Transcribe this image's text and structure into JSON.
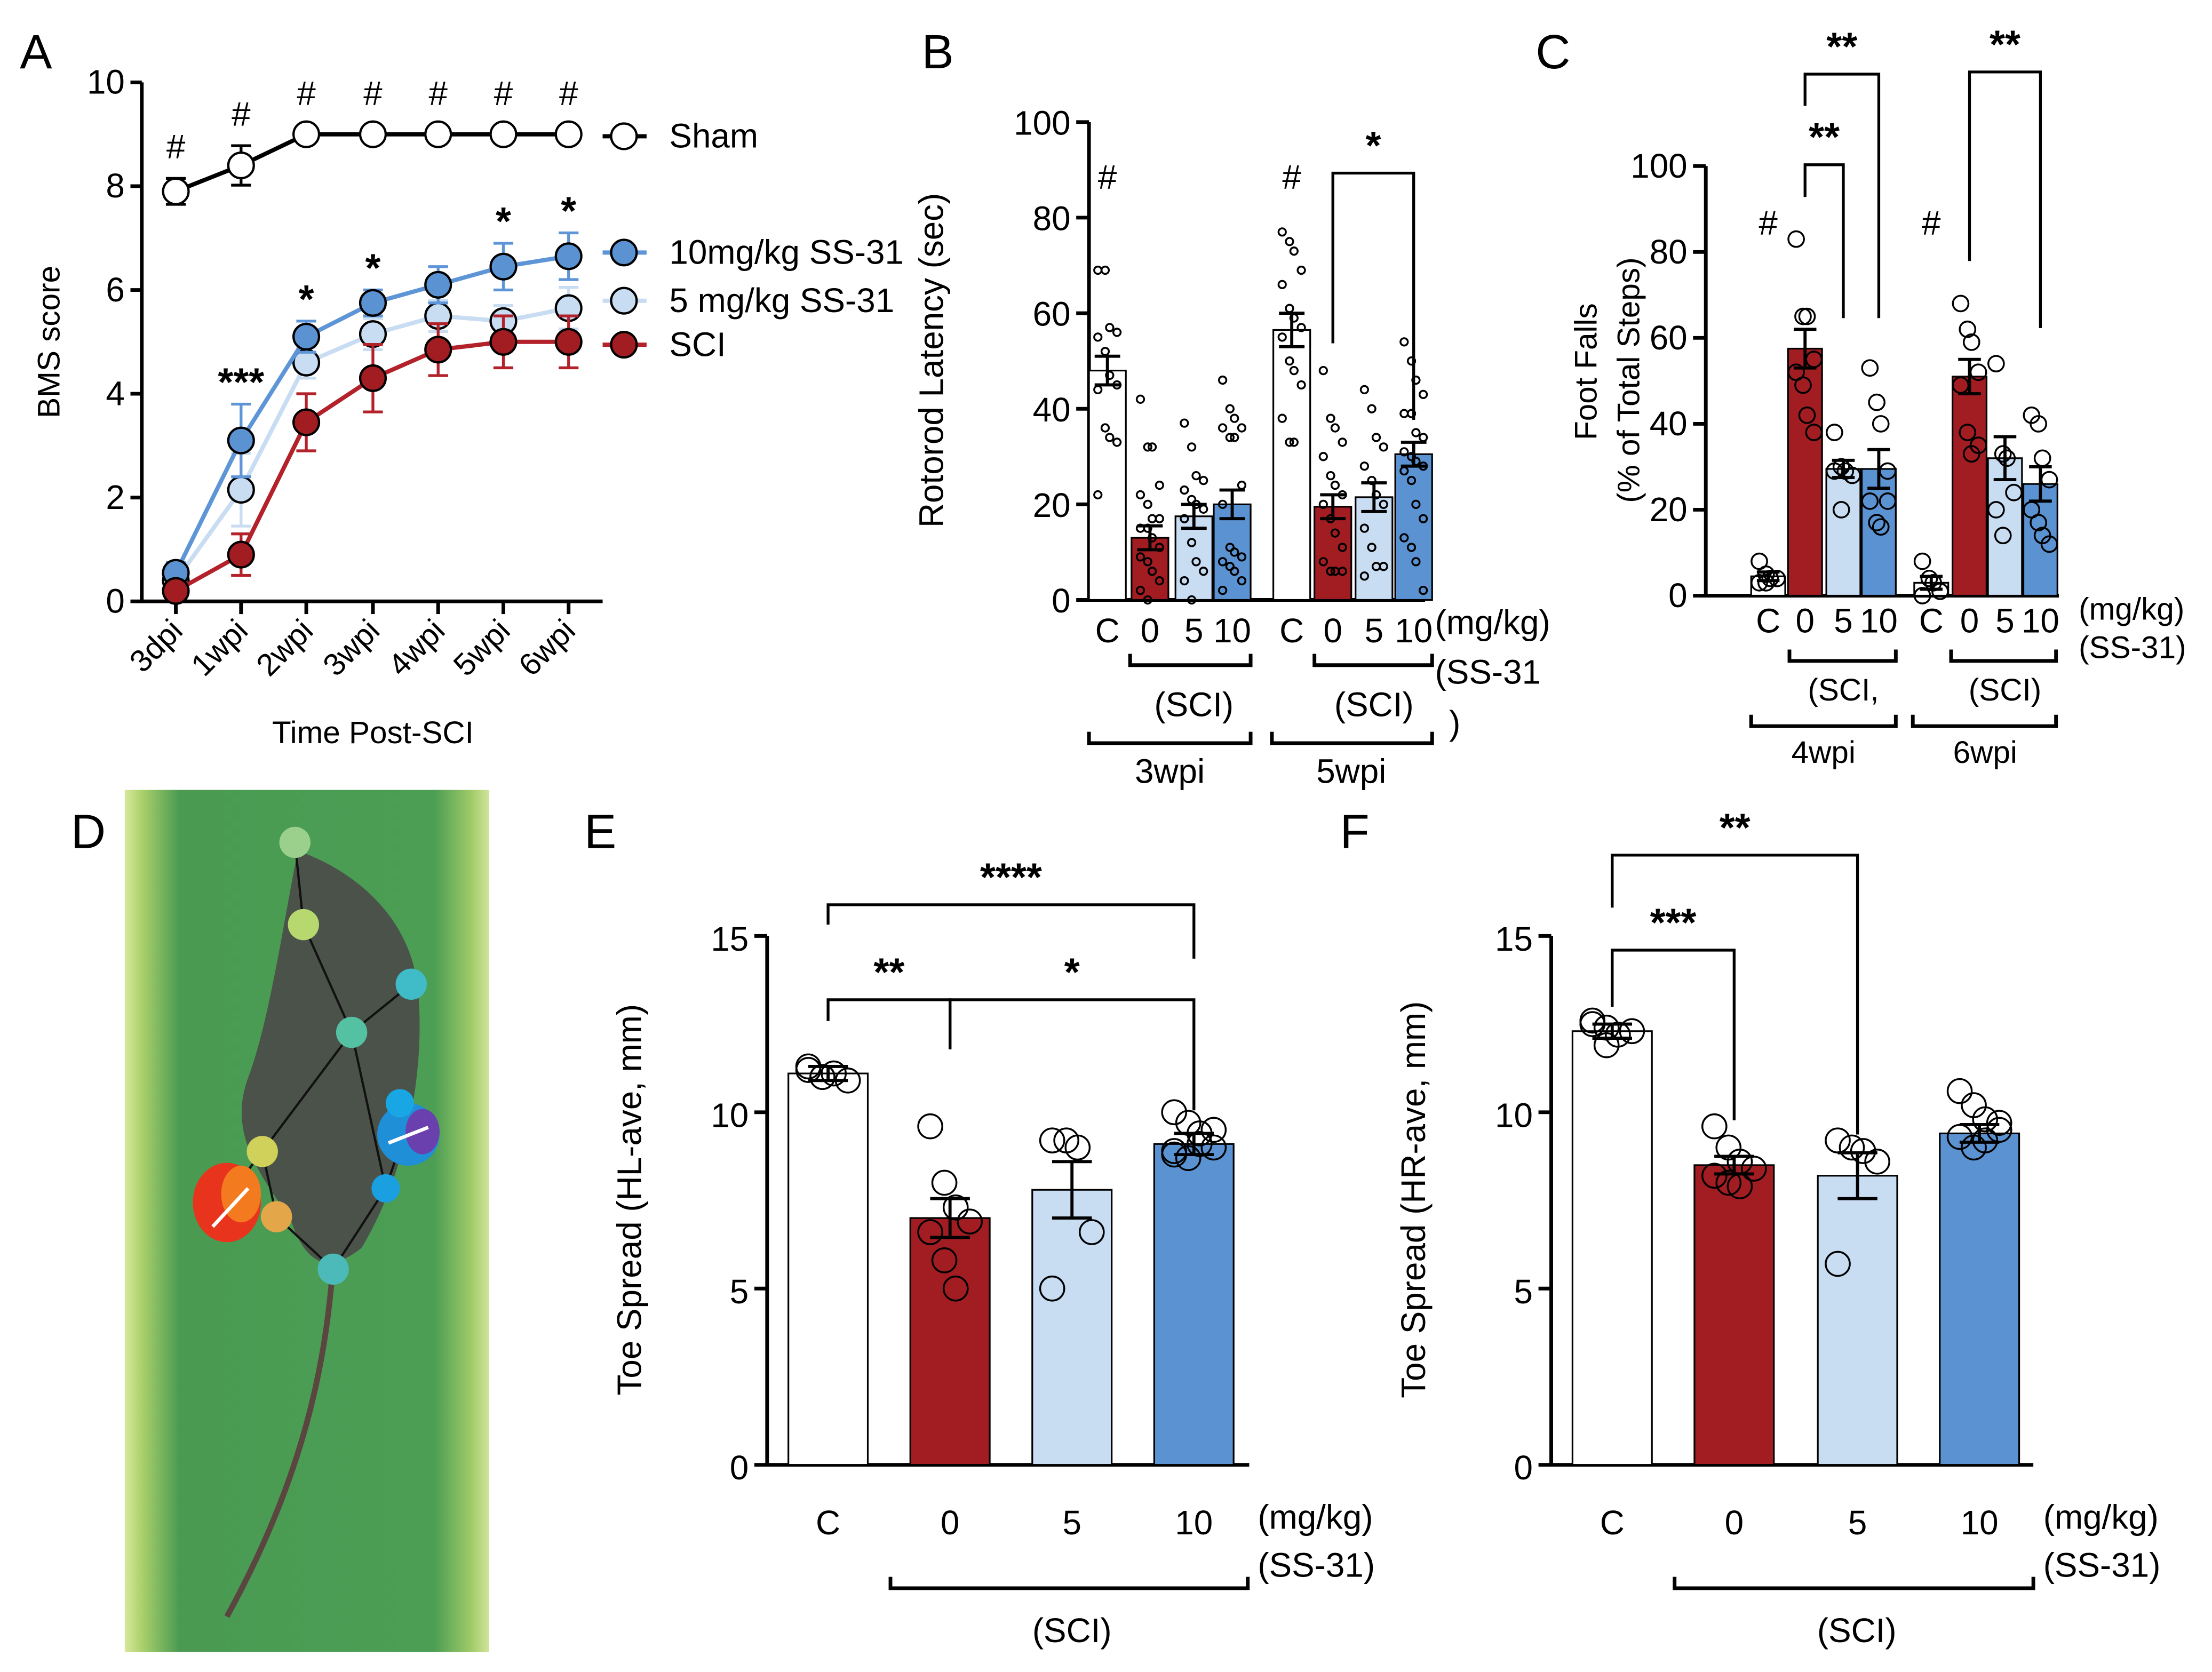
{
  "panels": {
    "A": "A",
    "B": "B",
    "C": "C",
    "D": "D",
    "E": "E",
    "F": "F"
  },
  "colors": {
    "sham": "#ffffff",
    "sci": "#a11d22",
    "ss5": "#c8dcf2",
    "ss10": "#5b93d2",
    "sci_line": "#b3212a",
    "ss5_line": "#c8dcf2",
    "ss10_line": "#5e95d6"
  },
  "chart_data": [
    {
      "id": "A",
      "type": "line",
      "xlabel": "Time Post-SCI",
      "ylabel": "BMS score",
      "ylim": [
        0,
        10
      ],
      "yticks": [
        "0",
        "2",
        "4",
        "6",
        "8",
        "10"
      ],
      "x": [
        "3dpi",
        "1wpi",
        "2wpi",
        "3wpi",
        "4wpi",
        "5wpi",
        "6wpi"
      ],
      "series": [
        {
          "name": "Sham",
          "values": [
            7.9,
            8.4,
            9,
            9,
            9,
            9,
            9
          ],
          "errors": [
            0.25,
            0.38,
            0,
            0,
            0,
            0,
            0
          ]
        },
        {
          "name": "10mg/kg SS-31",
          "values": [
            0.55,
            3.1,
            5.1,
            5.75,
            6.1,
            6.45,
            6.65
          ],
          "errors": [
            0.2,
            0.7,
            0.3,
            0.25,
            0.35,
            0.45,
            0.45
          ]
        },
        {
          "name": "5 mg/kg SS-31",
          "values": [
            0.4,
            2.15,
            4.6,
            5.15,
            5.5,
            5.4,
            5.65
          ],
          "errors": [
            0.2,
            0.7,
            0.3,
            0.3,
            0.3,
            0.3,
            0.4
          ]
        },
        {
          "name": "SCI",
          "values": [
            0.2,
            0.9,
            3.45,
            4.3,
            4.85,
            5.0,
            5.0
          ],
          "errors": [
            0.1,
            0.4,
            0.55,
            0.65,
            0.5,
            0.5,
            0.5
          ]
        }
      ],
      "hash_marks": [
        "#",
        "#",
        "#",
        "#",
        "#",
        "#",
        "#"
      ],
      "stars": [
        "",
        "***",
        "*",
        "*",
        "",
        "*",
        "*"
      ]
    },
    {
      "id": "B",
      "type": "bar",
      "ylabel": "Rotorod Latency (sec)",
      "ylim": [
        0,
        100
      ],
      "yticks": [
        "0",
        "20",
        "40",
        "60",
        "80",
        "100"
      ],
      "categories": [
        "C",
        "0",
        "5",
        "10",
        "C",
        "0",
        "5",
        "10"
      ],
      "unit_label": "(mg/kg)",
      "drug_label": "(SS-31",
      "drug_label_close": ")",
      "sci_label": "(SCI)",
      "timepoints": [
        "3wpi",
        "5wpi"
      ],
      "values": [
        48,
        13,
        17.5,
        20,
        56.5,
        19.5,
        21.5,
        30.5
      ],
      "errors": [
        3,
        2.5,
        2.5,
        3,
        3.5,
        2.5,
        3,
        2.5
      ],
      "points": [
        [
          69,
          69,
          57,
          56,
          55,
          52,
          47,
          45,
          44,
          36,
          34,
          33,
          22
        ],
        [
          42,
          32,
          32,
          24,
          22,
          20,
          17,
          17,
          15,
          15,
          13,
          11,
          9,
          8,
          6,
          4,
          2,
          0
        ],
        [
          37,
          32,
          26,
          25,
          23,
          21,
          20,
          19,
          17,
          12,
          8,
          6,
          4,
          0
        ],
        [
          46,
          40,
          38,
          36,
          36,
          34,
          34,
          24,
          20,
          11,
          10,
          9,
          8,
          7,
          6,
          4,
          2
        ],
        [
          77,
          75,
          73,
          69,
          66,
          61,
          59,
          57,
          55,
          50,
          48,
          45,
          38,
          33,
          33
        ],
        [
          48,
          38,
          36,
          33,
          30,
          26,
          24,
          22,
          20,
          17,
          14,
          11,
          8,
          6,
          6,
          6
        ],
        [
          44,
          40,
          34,
          32,
          28,
          25,
          22,
          20,
          15,
          11,
          7,
          7,
          5
        ],
        [
          54,
          50,
          46,
          43,
          39,
          39,
          35,
          34,
          31,
          30,
          29,
          28,
          27,
          25,
          20,
          17,
          13,
          11,
          8,
          2
        ]
      ],
      "hash_marks": [
        "#",
        "#"
      ],
      "comparisons": [
        {
          "from": 5,
          "to": 7,
          "label": "*"
        }
      ]
    },
    {
      "id": "C",
      "type": "bar",
      "ylabel": "Foot Falls",
      "ylabel2": "(% of Total Steps)",
      "ylim": [
        0,
        100
      ],
      "yticks": [
        "0",
        "20",
        "40",
        "60",
        "80",
        "100"
      ],
      "categories": [
        "C",
        "0",
        "5",
        "10",
        "C",
        "0",
        "5",
        "10"
      ],
      "unit_label": "(mg/kg)",
      "drug_label": "(SS-31)",
      "sci_labels": [
        "(SCI,",
        "(SCI)"
      ],
      "timepoints": [
        "4wpi",
        "6wpi"
      ],
      "values": [
        4.5,
        57.5,
        29.5,
        29.5,
        3,
        51,
        32,
        26
      ],
      "errors": [
        1,
        4.5,
        2,
        4.5,
        1.5,
        4,
        5,
        4
      ],
      "points": [
        [
          8,
          5,
          4,
          4,
          3,
          3
        ],
        [
          83,
          65,
          65,
          55,
          52,
          49,
          42,
          38
        ],
        [
          38,
          30,
          29,
          28,
          29,
          20
        ],
        [
          53,
          45,
          40,
          29,
          22,
          17,
          16,
          22
        ],
        [
          8,
          4,
          3,
          1,
          0
        ],
        [
          68,
          62,
          59,
          52,
          49,
          38,
          33,
          35
        ],
        [
          54,
          33,
          32,
          24,
          20,
          14
        ],
        [
          42,
          40,
          32,
          27,
          20,
          17,
          14,
          12
        ]
      ],
      "hash_marks": [
        "#",
        "#"
      ],
      "comparisons": [
        {
          "from": 1,
          "to": 3,
          "label": "**"
        },
        {
          "from": 1,
          "to": 2,
          "label": "**"
        },
        {
          "from": 5,
          "to": 7,
          "label": "**"
        }
      ]
    },
    {
      "id": "E",
      "type": "bar",
      "ylabel": "Toe Spread (HL-ave, mm)",
      "ylim": [
        0,
        15
      ],
      "yticks": [
        "0",
        "5",
        "10",
        "15"
      ],
      "categories": [
        "C",
        "0",
        "5",
        "10"
      ],
      "unit_label": "(mg/kg)",
      "drug_label": "(SS-31)",
      "sci_label": "(SCI)",
      "values": [
        11.1,
        7.0,
        7.8,
        9.1
      ],
      "errors": [
        0.2,
        0.55,
        0.8,
        0.3
      ],
      "points": [
        [
          11.2,
          11.0,
          11.1,
          10.9,
          11.3,
          11.0
        ],
        [
          9.6,
          8.0,
          7.3,
          6.9,
          6.6,
          5.8,
          5.0
        ],
        [
          9.2,
          9.2,
          9.0,
          6.6,
          5.0
        ],
        [
          10.0,
          9.7,
          9.4,
          9.0,
          8.9,
          8.7,
          9.1,
          9.5,
          8.8
        ]
      ],
      "comparisons": [
        {
          "from": 0,
          "to": 3,
          "label": "****"
        },
        {
          "from": 0,
          "to": 1,
          "label": "**"
        },
        {
          "from": 1,
          "to": 3,
          "label": "*"
        }
      ]
    },
    {
      "id": "F",
      "type": "bar",
      "ylabel": "Toe Spread (HR-ave, mm)",
      "ylim": [
        0,
        15
      ],
      "yticks": [
        "0",
        "5",
        "10",
        "15"
      ],
      "categories": [
        "C",
        "0",
        "5",
        "10"
      ],
      "unit_label": "(mg/kg)",
      "drug_label": "(SS-31)",
      "sci_label": "(SCI)",
      "values": [
        12.3,
        8.5,
        8.2,
        9.4
      ],
      "errors": [
        0.2,
        0.25,
        0.65,
        0.25
      ],
      "points": [
        [
          12.6,
          12.4,
          12.2,
          12.3,
          12.5,
          11.9
        ],
        [
          9.6,
          9.0,
          8.6,
          8.4,
          8.2,
          8.0,
          7.9
        ],
        [
          9.2,
          9.0,
          8.9,
          8.6,
          5.7
        ],
        [
          10.6,
          10.2,
          9.8,
          9.5,
          9.3,
          9.0,
          9.2,
          9.7
        ]
      ],
      "comparisons": [
        {
          "from": 0,
          "to": 2,
          "label": "**"
        },
        {
          "from": 0,
          "to": 1,
          "label": "***"
        }
      ]
    }
  ]
}
